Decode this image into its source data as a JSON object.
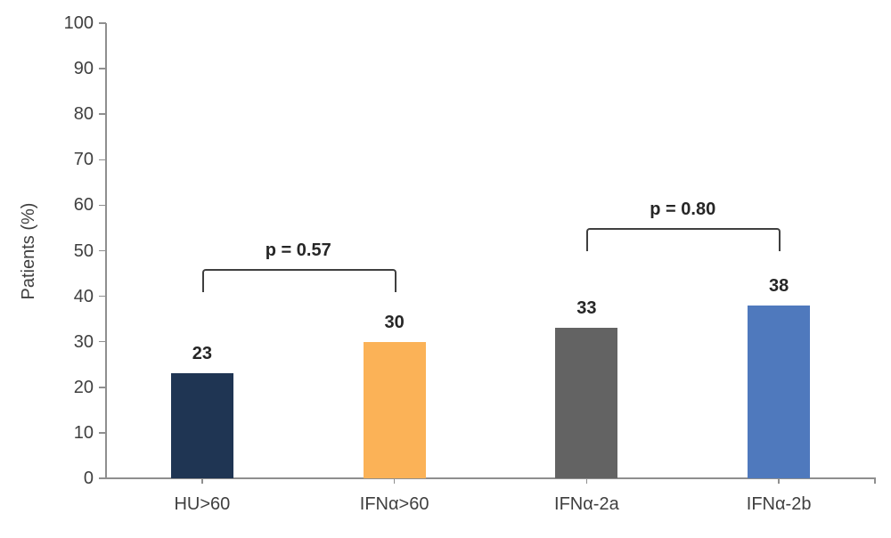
{
  "chart_data": {
    "type": "bar",
    "title": "",
    "xlabel": "",
    "ylabel": "Patients (%)",
    "ylim": [
      0,
      100
    ],
    "yticks": [
      0,
      10,
      20,
      30,
      40,
      50,
      60,
      70,
      80,
      90,
      100
    ],
    "grid": false,
    "legend": false,
    "categories": [
      "HU>60",
      "IFNα>60",
      "IFNα-2a",
      "IFNα-2b"
    ],
    "values": [
      23,
      30,
      33,
      38
    ],
    "value_labels": [
      "23",
      "30",
      "33",
      "38"
    ],
    "bar_colors": [
      "#1f3553",
      "#fbb257",
      "#636363",
      "#4f79bd"
    ],
    "annotations": [
      {
        "label": "p = 0.57",
        "from_index": 0,
        "to_index": 1,
        "bracket_y_value": 46
      },
      {
        "label": "p = 0.80",
        "from_index": 2,
        "to_index": 3,
        "bracket_y_value": 55
      }
    ]
  },
  "colors": {
    "axis": "#8f8f8f",
    "tick_text": "#3f3f3f",
    "value_label_text": "#262626",
    "bracket": "#3f3f3f",
    "background": "#ffffff"
  }
}
